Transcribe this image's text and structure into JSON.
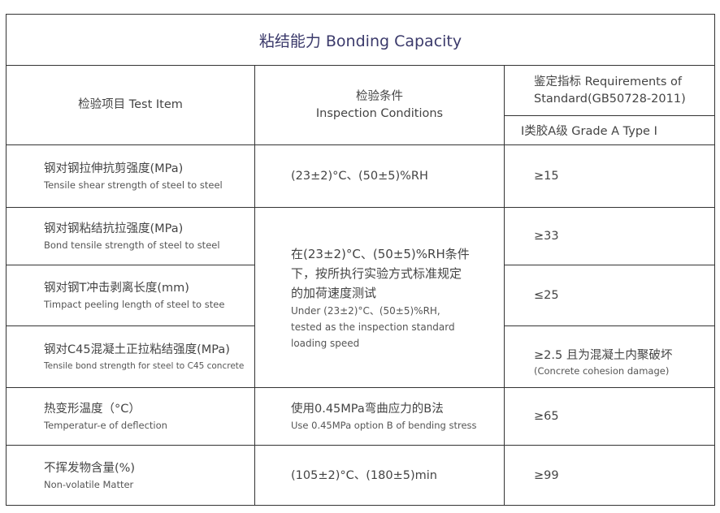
{
  "title": "粘结能力 Bonding Capacity",
  "header": {
    "test_item": "检验项目 Test Item",
    "conditions_zh": "检验条件",
    "conditions_en": "Inspection Conditions",
    "requirements_line1": "鉴定指标 Requirements of",
    "requirements_line2": "Standard(GB50728-2011)",
    "grade": "Ⅰ类胶A级  Grade A Type Ⅰ"
  },
  "rows": [
    {
      "item_zh": "钢对钢拉伸抗剪强度(MPa)",
      "item_en": "Tensile shear strength of steel to steel",
      "condition": "(23±2)°C、(50±5)%RH",
      "value": "≥15"
    },
    {
      "item_zh": "钢对钢粘结抗拉强度(MPa)",
      "item_en": "Bond tensile strength of steel to steel",
      "value": "≥33"
    },
    {
      "item_zh": "钢对钢T冲击剥离长度(mm)",
      "item_en": "Timpact peeling length of steel to stee",
      "value": "≤25"
    },
    {
      "item_zh": "钢对C45混凝土正拉粘结强度(MPa)",
      "item_en": "Tensile bond strength for steel to C45 concrete",
      "value": "≥2.5 且为混凝土内聚破坏",
      "value_note": "(Concrete cohesion damage)"
    },
    {
      "item_zh": "热变形温度（°C）",
      "item_en": "Temperatur-e of deflection",
      "condition_zh": "使用0.45MPa弯曲应力的B法",
      "condition_en": "Use 0.45MPa option B of bending stress",
      "value": "≥65"
    },
    {
      "item_zh": "不挥发物含量(%)",
      "item_en": "Non-volatile Matter",
      "condition": "(105±2)°C、(180±5)min",
      "value": "≥99"
    }
  ],
  "shared_condition": {
    "zh": "在(23±2)°C、(50±5)%RH条件下，按所执行实验方式标准规定的加荷速度测试",
    "en": "Under (23±2)°C、(50±5)%RH, tested as the inspection standard loading speed"
  }
}
